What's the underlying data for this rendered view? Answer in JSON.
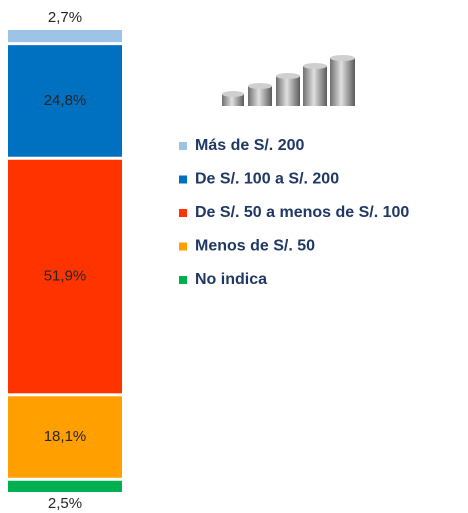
{
  "chart_data": {
    "type": "bar",
    "stacked": true,
    "categories": [
      null
    ],
    "series": [
      {
        "name": "Más de S/. 200",
        "color": "#9dc3e6",
        "values": [
          2.7
        ],
        "value_labels": [
          "2,7%"
        ]
      },
      {
        "name": "De S/. 100 a S/. 200",
        "color": "#0070c0",
        "values": [
          24.8
        ],
        "value_labels": [
          "24,8%"
        ]
      },
      {
        "name": "De S/. 50 a menos de S/. 100",
        "color": "#ff3300",
        "values": [
          51.9
        ],
        "value_labels": [
          "51,9%"
        ]
      },
      {
        "name": "Menos de S/. 50",
        "color": "#ffa000",
        "values": [
          18.1
        ],
        "value_labels": [
          "18,1%"
        ]
      },
      {
        "name": "No indica",
        "color": "#00b050",
        "values": [
          2.5
        ],
        "value_labels": [
          "2,5%"
        ]
      }
    ],
    "legend": "right"
  }
}
